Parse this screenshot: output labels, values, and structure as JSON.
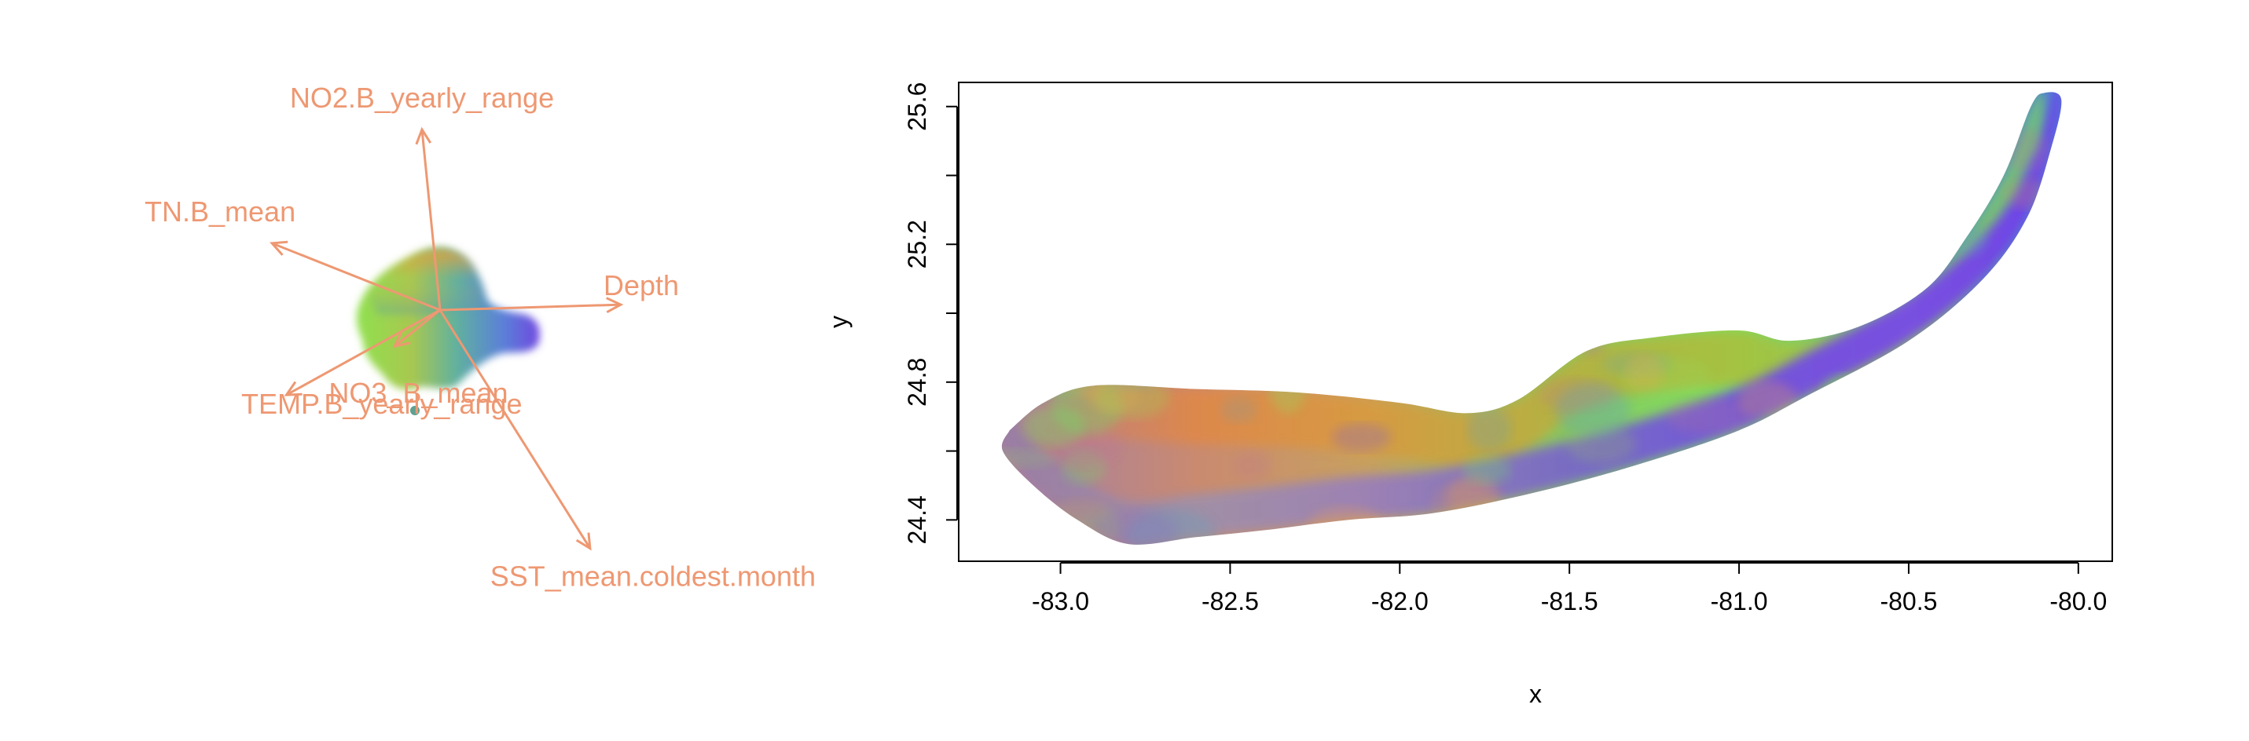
{
  "chart_data": [
    {
      "type": "biplot",
      "title": "",
      "colors": {
        "arrows": "#EE9872"
      },
      "vectors": [
        {
          "name": "NO2.B_yearly_range",
          "dx": -0.1,
          "dy": 1.0
        },
        {
          "name": "TN.B_mean",
          "dx": -0.93,
          "dy": 0.37
        },
        {
          "name": "Depth",
          "dx": 1.0,
          "dy": 0.03
        },
        {
          "name": "NO3_B_mean",
          "dx": -0.25,
          "dy": -0.2
        },
        {
          "name": "TEMP.B_yearly_range",
          "dx": -0.85,
          "dy": -0.47
        },
        {
          "name": "SST_mean.coldest.month",
          "dx": 0.83,
          "dy": -1.32
        }
      ],
      "cloud_colors": [
        "#E0A040",
        "#B5C040",
        "#90E050",
        "#60C090",
        "#5090D0",
        "#7050E0",
        "#9060A0",
        "#C0A050"
      ]
    },
    {
      "type": "scatter",
      "title": "",
      "xlabel": "x",
      "ylabel": "y",
      "xlim": [
        -83.3,
        -79.9
      ],
      "ylim": [
        24.28,
        25.67
      ],
      "xticks": [
        "-83.0",
        "-82.5",
        "-82.0",
        "-81.5",
        "-81.0",
        "-80.5",
        "-80.0"
      ],
      "yticks": [
        "24.4",
        "24.8",
        "25.2",
        "25.6"
      ],
      "region": {
        "top": [
          [
            -83.15,
            24.66
          ],
          [
            -83.05,
            24.74
          ],
          [
            -82.9,
            24.79
          ],
          [
            -82.6,
            24.78
          ],
          [
            -82.3,
            24.77
          ],
          [
            -82.0,
            24.74
          ],
          [
            -81.8,
            24.71
          ],
          [
            -81.65,
            24.75
          ],
          [
            -81.45,
            24.89
          ],
          [
            -81.25,
            24.93
          ],
          [
            -81.0,
            24.95
          ],
          [
            -80.85,
            24.92
          ],
          [
            -80.65,
            24.96
          ],
          [
            -80.45,
            25.07
          ],
          [
            -80.33,
            25.22
          ],
          [
            -80.22,
            25.4
          ],
          [
            -80.14,
            25.6
          ],
          [
            -80.1,
            25.64
          ]
        ],
        "bottom": [
          [
            -80.05,
            25.62
          ],
          [
            -80.08,
            25.48
          ],
          [
            -80.15,
            25.28
          ],
          [
            -80.28,
            25.1
          ],
          [
            -80.5,
            24.92
          ],
          [
            -80.8,
            24.76
          ],
          [
            -81.0,
            24.66
          ],
          [
            -81.3,
            24.56
          ],
          [
            -81.6,
            24.48
          ],
          [
            -81.9,
            24.42
          ],
          [
            -82.15,
            24.4
          ],
          [
            -82.4,
            24.37
          ],
          [
            -82.6,
            24.35
          ],
          [
            -82.8,
            24.33
          ],
          [
            -82.95,
            24.4
          ],
          [
            -83.08,
            24.5
          ],
          [
            -83.17,
            24.6
          ]
        ]
      },
      "color_stops": [
        {
          "x": -83.1,
          "top": "#B87F8C",
          "mid": "#A880A0",
          "bottom": "#9A7FA5"
        },
        {
          "x": -82.6,
          "top": "#E08848",
          "mid": "#C98A70",
          "bottom": "#A090A8"
        },
        {
          "x": -82.1,
          "top": "#D89A40",
          "mid": "#C8A060",
          "bottom": "#9A80B8"
        },
        {
          "x": -81.5,
          "top": "#B8B040",
          "mid": "#88C860",
          "bottom": "#7868C8"
        },
        {
          "x": -81.0,
          "top": "#A8C040",
          "mid": "#80E060",
          "bottom": "#7050E0"
        },
        {
          "x": -80.5,
          "top": "#90D050",
          "mid": "#60B0A0",
          "bottom": "#7848E8"
        },
        {
          "x": -80.1,
          "top": "#70C080",
          "mid": "#5080D8",
          "bottom": "#7040E8"
        }
      ]
    }
  ]
}
